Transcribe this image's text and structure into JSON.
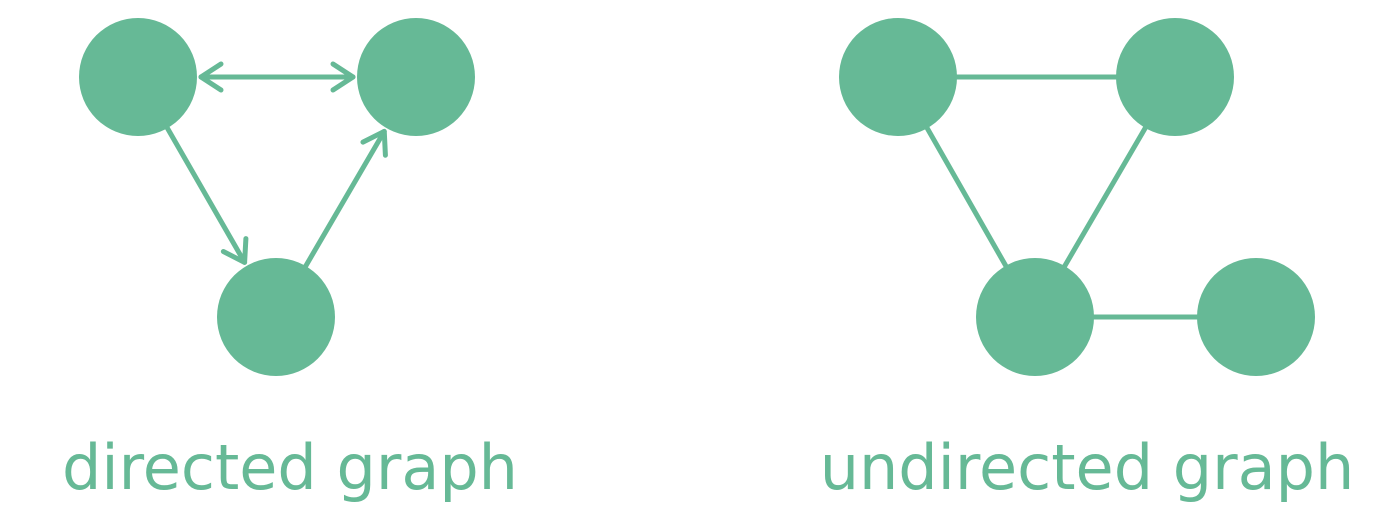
{
  "colors": {
    "node": "#66b996",
    "edge": "#66b996",
    "label": "#66b996",
    "background": "#ffffff"
  },
  "graphs": [
    {
      "id": "directed",
      "label": "directed graph",
      "directed": true,
      "nodes": [
        "A",
        "B",
        "C"
      ],
      "edges": [
        {
          "from": "A",
          "to": "B",
          "bidirectional": true
        },
        {
          "from": "A",
          "to": "C"
        },
        {
          "from": "C",
          "to": "B"
        }
      ]
    },
    {
      "id": "undirected",
      "label": "undirected graph",
      "directed": false,
      "nodes": [
        "A",
        "B",
        "C",
        "D"
      ],
      "edges": [
        {
          "from": "A",
          "to": "B"
        },
        {
          "from": "A",
          "to": "C"
        },
        {
          "from": "B",
          "to": "C"
        },
        {
          "from": "C",
          "to": "D"
        }
      ]
    }
  ]
}
